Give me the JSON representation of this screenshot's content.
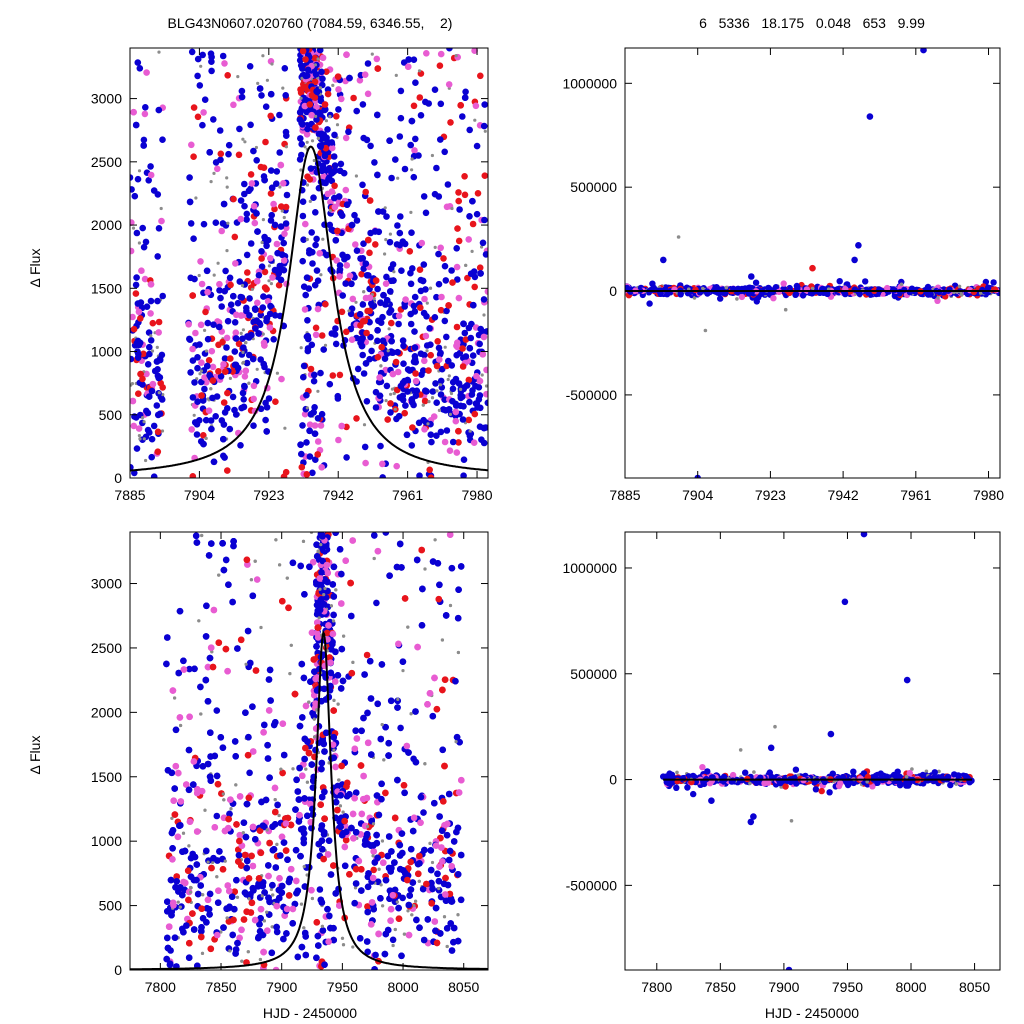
{
  "header": {
    "title_left": "BLG43N0607.020760 (7084.59, 6346.55,    2)",
    "title_right": "6   5336   18.175   0.048   653   9.99"
  },
  "colors": {
    "gray": "#8c8c8c",
    "red": "#e8141c",
    "magenta": "#e85cd2",
    "blue": "#0a00d2",
    "model": "#000000"
  },
  "chart_data": [
    {
      "id": "top-left",
      "type": "scatter",
      "title": "",
      "xlabel": "",
      "ylabel": "Δ Flux",
      "xlim": [
        7885,
        7983
      ],
      "ylim": [
        0,
        3400
      ],
      "xticks": [
        7885,
        7904,
        7923,
        7942,
        7961,
        7980
      ],
      "yticks": [
        0,
        500,
        1000,
        1500,
        2000,
        2500,
        3000
      ],
      "series_colors": [
        "gray",
        "red",
        "magenta",
        "blue"
      ],
      "model": {
        "t0": 7934.5,
        "peak": 2620,
        "width": 7.5
      },
      "gaps": [
        [
          7894,
          7901
        ],
        [
          7928,
          7932
        ]
      ],
      "density": "high"
    },
    {
      "id": "top-right",
      "type": "scatter",
      "title": "",
      "xlabel": "",
      "ylabel": "",
      "xlim": [
        7885,
        7983
      ],
      "ylim": [
        -900000,
        1170000
      ],
      "xticks": [
        7885,
        7904,
        7923,
        7942,
        7961,
        7980
      ],
      "yticks": [
        -500000,
        0,
        500000,
        1000000
      ],
      "outliers": [
        {
          "x": 7963,
          "y": 1160000,
          "c": "blue"
        },
        {
          "x": 7949,
          "y": 840000,
          "c": "blue"
        },
        {
          "x": 7946,
          "y": 220000,
          "c": "blue"
        },
        {
          "x": 7945,
          "y": 150000,
          "c": "blue"
        },
        {
          "x": 7895,
          "y": 150000,
          "c": "blue"
        },
        {
          "x": 7904,
          "y": -900000,
          "c": "blue"
        },
        {
          "x": 7934,
          "y": 110000,
          "c": "red"
        },
        {
          "x": 7899,
          "y": 260000,
          "c": "gray"
        },
        {
          "x": 7906,
          "y": -190000,
          "c": "gray"
        },
        {
          "x": 7918,
          "y": 70000,
          "c": "blue"
        },
        {
          "x": 7927,
          "y": -90000,
          "c": "gray"
        }
      ]
    },
    {
      "id": "bottom-left",
      "type": "scatter",
      "title": "",
      "xlabel": "HJD - 2450000",
      "ylabel": "Δ Flux",
      "xlim": [
        7775,
        8070
      ],
      "ylim": [
        0,
        3400
      ],
      "xticks": [
        7800,
        7850,
        7900,
        7950,
        8000,
        8050
      ],
      "yticks": [
        0,
        500,
        1000,
        1500,
        2000,
        2500,
        3000
      ],
      "series_colors": [
        "gray",
        "red",
        "magenta",
        "blue"
      ],
      "model": {
        "t0": 7934.5,
        "peak": 2620,
        "width": 7.5
      },
      "data_range": [
        7805,
        8048
      ],
      "density": "high"
    },
    {
      "id": "bottom-right",
      "type": "scatter",
      "title": "",
      "xlabel": "HJD - 2450000",
      "ylabel": "",
      "xlim": [
        7775,
        8070
      ],
      "ylim": [
        -900000,
        1170000
      ],
      "xticks": [
        7800,
        7850,
        7900,
        7950,
        8000,
        8050
      ],
      "yticks": [
        -500000,
        0,
        500000,
        1000000
      ],
      "data_range": [
        7805,
        8048
      ],
      "outliers": [
        {
          "x": 7963,
          "y": 1160000,
          "c": "blue"
        },
        {
          "x": 7948,
          "y": 840000,
          "c": "blue"
        },
        {
          "x": 7997,
          "y": 470000,
          "c": "blue"
        },
        {
          "x": 7937,
          "y": 215000,
          "c": "blue"
        },
        {
          "x": 7904,
          "y": -900000,
          "c": "blue"
        },
        {
          "x": 7874,
          "y": -200000,
          "c": "blue"
        },
        {
          "x": 7876,
          "y": -175000,
          "c": "blue"
        },
        {
          "x": 7843,
          "y": -100000,
          "c": "blue"
        },
        {
          "x": 7893,
          "y": 250000,
          "c": "gray"
        },
        {
          "x": 7890,
          "y": 150000,
          "c": "blue"
        },
        {
          "x": 7906,
          "y": -195000,
          "c": "gray"
        },
        {
          "x": 7866,
          "y": 140000,
          "c": "gray"
        }
      ]
    }
  ]
}
